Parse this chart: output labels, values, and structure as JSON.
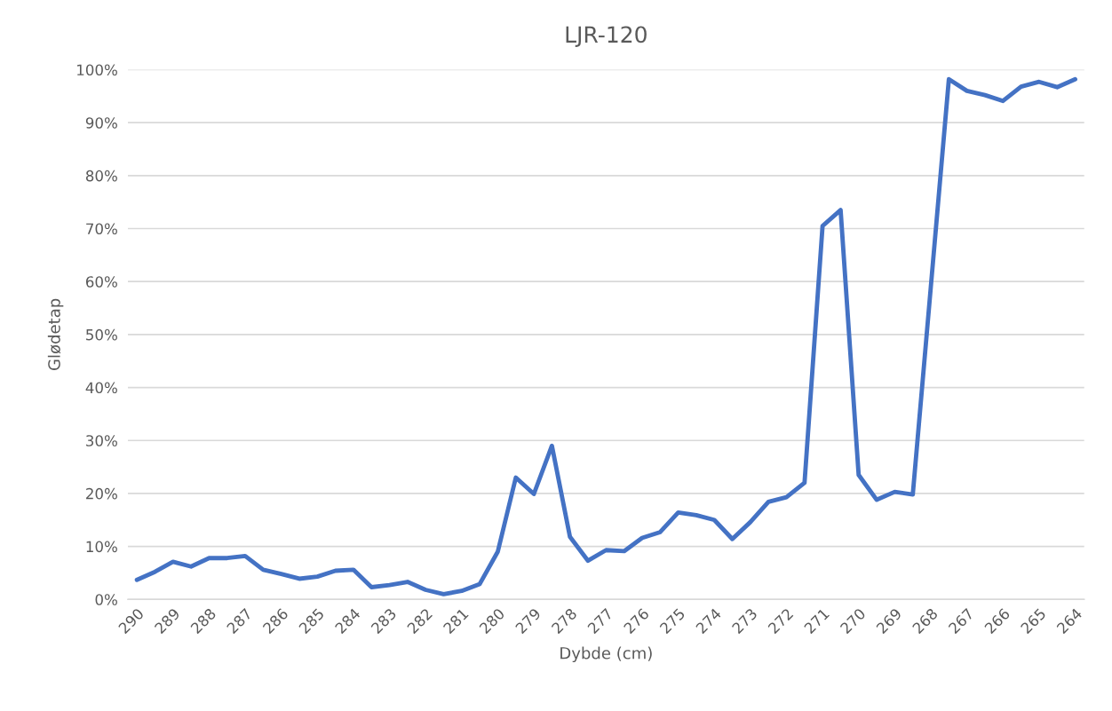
{
  "chart_data": {
    "type": "line",
    "title": "LJR-120",
    "xlabel": "Dybde (cm)",
    "ylabel": "Glødetap",
    "categories": [
      "290",
      null,
      "289",
      null,
      "288",
      null,
      "287",
      null,
      "286",
      null,
      "285",
      null,
      "284",
      null,
      "283",
      null,
      "282",
      null,
      "281",
      null,
      "280",
      null,
      "279",
      null,
      "278",
      null,
      "277",
      null,
      "276",
      null,
      "275",
      null,
      "274",
      null,
      "273",
      null,
      "272",
      null,
      "271",
      null,
      "270",
      null,
      "269",
      null,
      "268",
      null,
      "267",
      null,
      "266",
      null,
      "265",
      null,
      "264"
    ],
    "series": [
      {
        "color": "#4472c4",
        "values": [
          3.7,
          5.2,
          7.1,
          6.2,
          7.8,
          7.8,
          8.2,
          5.6,
          4.8,
          3.9,
          4.3,
          5.4,
          5.6,
          2.3,
          2.7,
          3.3,
          1.8,
          1.0,
          1.6,
          2.9,
          9.0,
          23.0,
          19.9,
          29.0,
          11.8,
          7.3,
          9.3,
          9.1,
          11.6,
          12.7,
          16.4,
          15.9,
          15.0,
          11.4,
          14.6,
          18.4,
          19.3,
          22.0,
          70.5,
          73.5,
          23.5,
          18.8,
          20.3,
          19.8,
          59.0,
          98.2,
          96.0,
          95.2,
          94.1,
          96.8,
          97.7,
          96.7,
          98.2
        ]
      }
    ],
    "ylim": [
      0,
      100
    ],
    "yticks": [
      {
        "value": 0,
        "label": "0%"
      },
      {
        "value": 10,
        "label": "10%"
      },
      {
        "value": 20,
        "label": "20%"
      },
      {
        "value": 30,
        "label": "30%"
      },
      {
        "value": 40,
        "label": "40%"
      },
      {
        "value": 50,
        "label": "50%"
      },
      {
        "value": 60,
        "label": "60%"
      },
      {
        "value": 70,
        "label": "70%"
      },
      {
        "value": 80,
        "label": "80%"
      },
      {
        "value": 90,
        "label": "90%"
      },
      {
        "value": 100,
        "label": "100%"
      }
    ],
    "grid": "y",
    "marker": "none",
    "line_style": "solid"
  }
}
